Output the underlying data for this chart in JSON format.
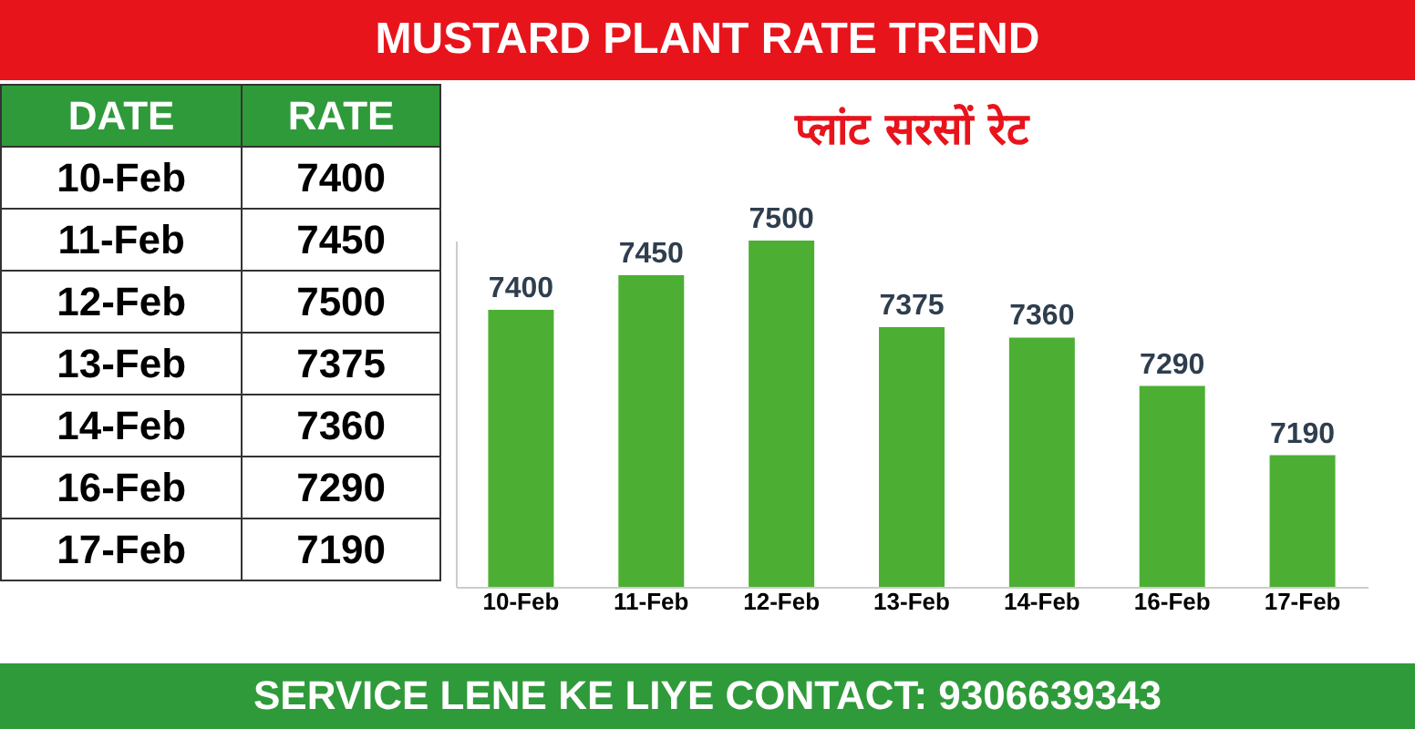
{
  "chart_data": [
    {
      "type": "bar",
      "title": "MUSTARD PLANT RATE TREND",
      "subtitle": "प्लांट सरसों रेट",
      "categories": [
        "10-Feb",
        "11-Feb",
        "12-Feb",
        "13-Feb",
        "14-Feb",
        "16-Feb",
        "17-Feb"
      ],
      "values": [
        7400,
        7450,
        7500,
        7375,
        7360,
        7290,
        7190
      ],
      "color": "#4caf34",
      "ylim": [
        7000,
        7500
      ],
      "data_labels": true,
      "grid": false,
      "tick_labels": "x",
      "annotations": [
        "SERVICE LENE KE LIYE CONTACT: 9306639343"
      ]
    },
    {
      "type": "other",
      "annotations": [
        "DATE",
        "RATE"
      ],
      "categories": [
        "10-Feb",
        "11-Feb",
        "12-Feb",
        "13-Feb",
        "14-Feb",
        "16-Feb",
        "17-Feb"
      ],
      "values": [
        7400,
        7450,
        7500,
        7375,
        7360,
        7290,
        7190
      ],
      "data_labels": true
    }
  ]
}
